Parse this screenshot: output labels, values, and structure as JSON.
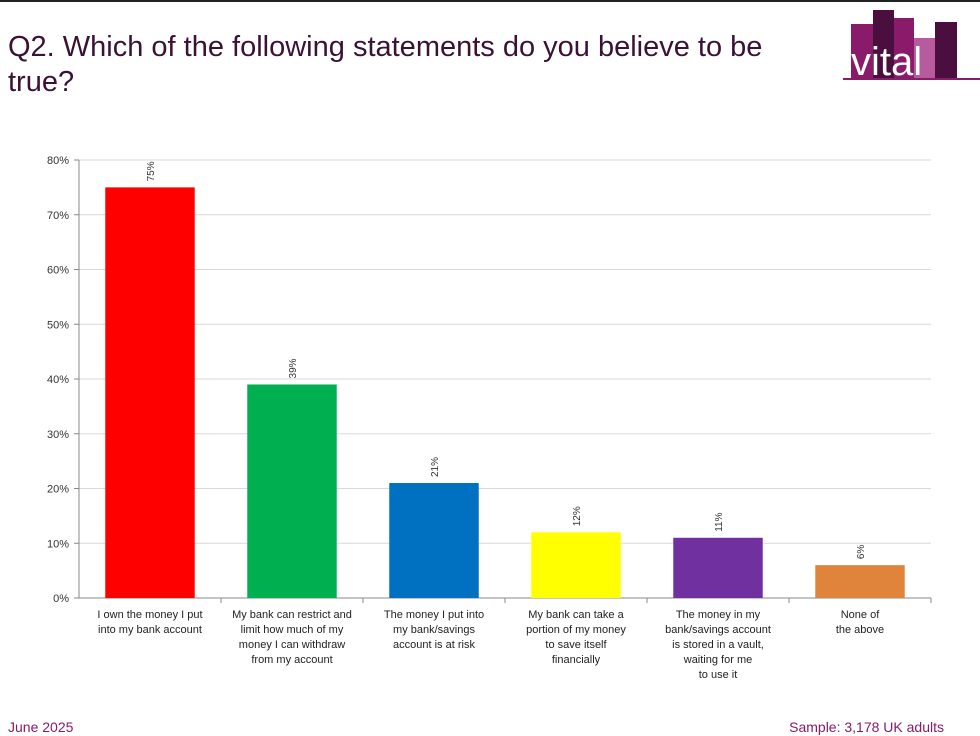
{
  "title": "Q2. Which of the following statements do you believe to be true?",
  "logo_text": "vital",
  "footer": {
    "date": "June 2025",
    "sample": "Sample: 3,178 UK adults"
  },
  "colors": {
    "title": "#3b1236",
    "footer": "#8a1a6a",
    "logo_primary": "#8a1a6a",
    "logo_dark": "#4a0f3e",
    "logo_light": "#b85a9e"
  },
  "chart_data": {
    "type": "bar",
    "categories": [
      [
        "I own the money I put",
        "into my bank account"
      ],
      [
        "My bank can restrict and",
        "limit how much of my",
        "money I can withdraw",
        "from my account"
      ],
      [
        "The money I put into",
        "my bank/savings",
        "account is at risk"
      ],
      [
        "My bank can take a",
        "portion of my money",
        "to save itself",
        "financially"
      ],
      [
        "The money in my",
        "bank/savings account",
        "is stored in a vault,",
        "waiting for me",
        "to use it"
      ],
      [
        "None of",
        "the above"
      ]
    ],
    "values": [
      75,
      39,
      21,
      12,
      11,
      6
    ],
    "data_labels": [
      "75%",
      "39%",
      "21%",
      "12%",
      "11%",
      "6%"
    ],
    "bar_colors": [
      "#ff0000",
      "#00b050",
      "#0070c0",
      "#ffff00",
      "#7030a0",
      "#e0843c"
    ],
    "ylim": [
      0,
      80
    ],
    "yticks": [
      0,
      10,
      20,
      30,
      40,
      50,
      60,
      70,
      80
    ],
    "ytick_labels": [
      "0%",
      "10%",
      "20%",
      "30%",
      "40%",
      "50%",
      "60%",
      "70%",
      "80%"
    ],
    "grid": true,
    "legend": false
  }
}
